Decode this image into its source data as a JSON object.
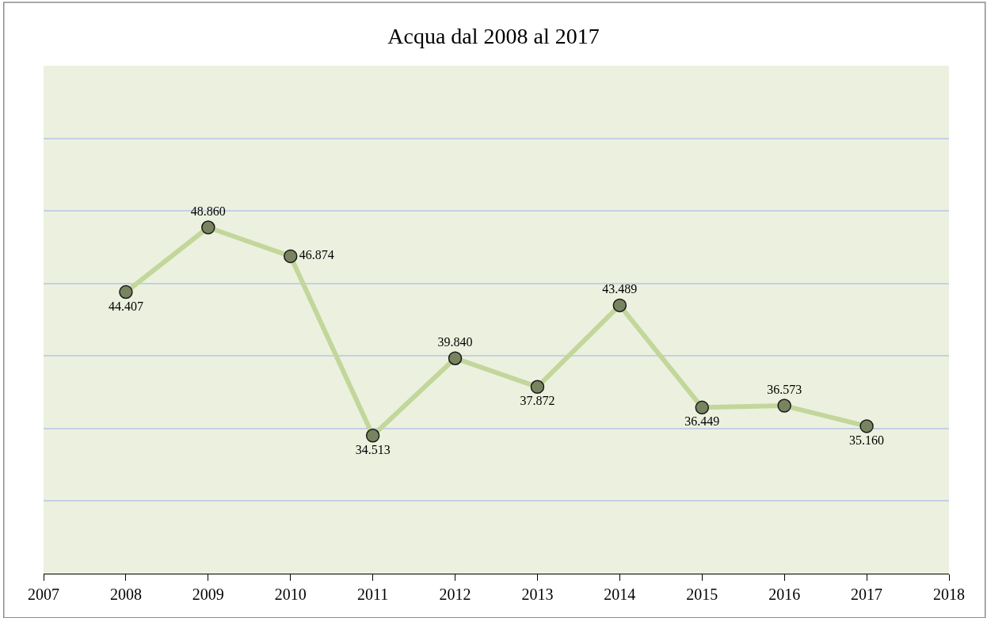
{
  "chart_data": {
    "type": "line",
    "title": "Acqua dal 2008 al 2017",
    "x": [
      2008,
      2009,
      2010,
      2011,
      2012,
      2013,
      2014,
      2015,
      2016,
      2017
    ],
    "series": [
      {
        "color": "#c3d69b",
        "values": [
          44.407,
          48.86,
          46.874,
          34.513,
          39.84,
          37.872,
          43.489,
          36.449,
          36.573,
          35.16
        ],
        "value_labels": [
          "44.407",
          "48.860",
          "46.874",
          "34.513",
          "39.840",
          "37.872",
          "43.489",
          "36.449",
          "36.573",
          "35.160"
        ]
      }
    ],
    "xlim": [
      2007,
      2018
    ],
    "xticks": [
      2007,
      2008,
      2009,
      2010,
      2011,
      2012,
      2013,
      2014,
      2015,
      2016,
      2017,
      2018
    ],
    "ylim": [
      25,
      60
    ],
    "yticks": [
      {
        "value": 25,
        "label": null
      },
      {
        "value": 30,
        "label": null
      },
      {
        "value": 35,
        "label": null
      },
      {
        "value": 40,
        "label": null
      },
      {
        "value": 45,
        "label": null
      },
      {
        "value": 50,
        "label": null
      },
      {
        "value": 55,
        "label": null
      },
      {
        "value": 60,
        "label": null
      }
    ],
    "tick_labels": "x",
    "grid": "y",
    "marker": "circle",
    "line_style": "solid"
  }
}
